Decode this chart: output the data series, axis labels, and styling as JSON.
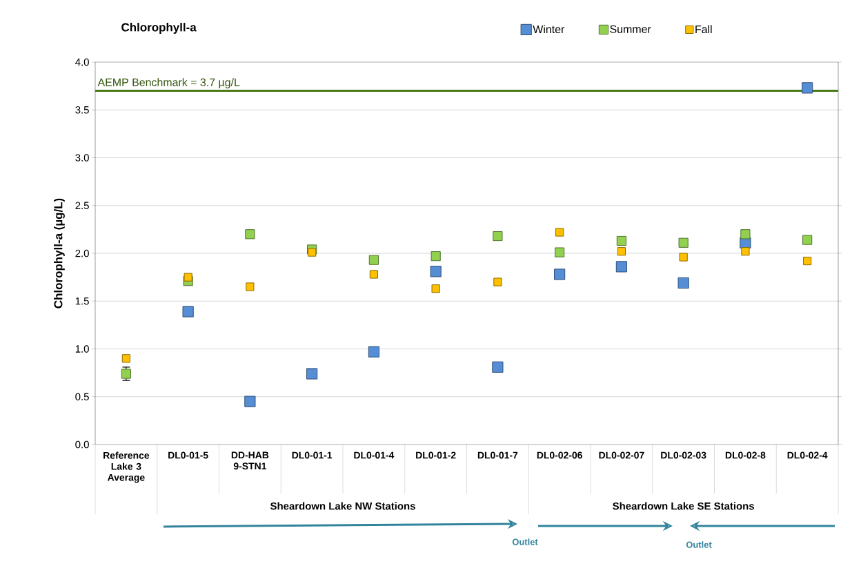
{
  "chart_data": {
    "type": "scatter",
    "title": "Chlorophyll-a",
    "ylabel": "Chlorophyll-a (µg/L)",
    "categories": [
      "Reference Lake 3 Average",
      "DL0-01-5",
      "DD-HAB 9-STN1",
      "DL0-01-1",
      "DL0-01-4",
      "DL0-01-2",
      "DL0-01-7",
      "DL0-02-06",
      "DL0-02-07",
      "DL0-02-03",
      "DL0-02-8",
      "DL0-02-4"
    ],
    "series": [
      {
        "name": "Winter",
        "color": "#558ed5",
        "values": [
          null,
          1.39,
          0.45,
          0.74,
          0.97,
          1.81,
          0.81,
          1.78,
          1.86,
          1.69,
          2.11,
          3.73
        ]
      },
      {
        "name": "Summer",
        "color": "#92d050",
        "values": [
          0.74,
          1.71,
          2.2,
          2.04,
          1.93,
          1.97,
          2.18,
          2.01,
          2.13,
          2.11,
          2.2,
          2.14
        ],
        "errors": [
          [
            0.67,
            0.81
          ],
          null,
          null,
          null,
          null,
          null,
          null,
          null,
          null,
          null,
          null,
          null
        ]
      },
      {
        "name": "Fall",
        "color": "#ffc000",
        "values": [
          0.9,
          1.75,
          1.65,
          2.01,
          1.78,
          1.63,
          1.7,
          2.22,
          2.02,
          1.96,
          2.02,
          1.92
        ]
      }
    ],
    "ylim": [
      0,
      4
    ],
    "yticks": [
      {
        "value": 0,
        "label": "0.0"
      },
      {
        "value": 0.5,
        "label": "0.5"
      },
      {
        "value": 1,
        "label": "1.0"
      },
      {
        "value": 1.5,
        "label": "1.5"
      },
      {
        "value": 2,
        "label": "2.0"
      },
      {
        "value": 2.5,
        "label": "2.5"
      },
      {
        "value": 3,
        "label": "3.0"
      },
      {
        "value": 3.5,
        "label": "3.5"
      },
      {
        "value": 4,
        "label": "4.0"
      }
    ],
    "grid": "y",
    "legend": "top right",
    "marker": "square",
    "ref_lines": [
      {
        "axis": "y",
        "value": 3.7,
        "label": "AEMP Benchmark = 3.7 µg/L",
        "color": "#4a7a14"
      }
    ],
    "annotations": [
      "Sheardown Lake NW Stations",
      "Sheardown Lake SE Stations",
      "Outlet",
      "Outlet"
    ]
  }
}
